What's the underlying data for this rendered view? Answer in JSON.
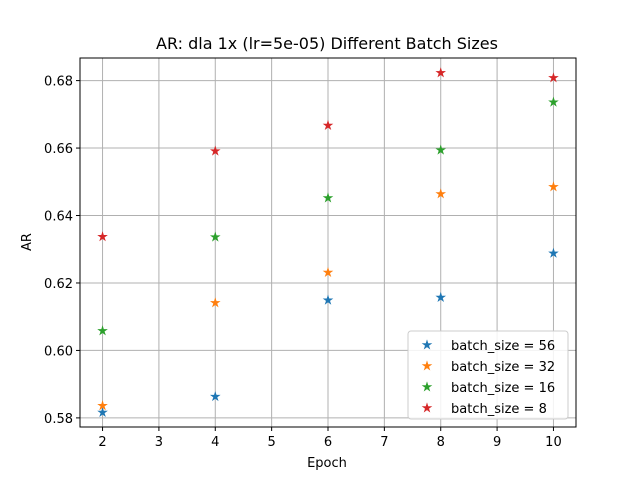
{
  "chart_data": {
    "type": "scatter",
    "title": "AR: dla 1x (lr=5e-05) Different Batch Sizes",
    "xlabel": "Epoch",
    "ylabel": "AR",
    "xlim": [
      1.6,
      10.4
    ],
    "ylim": [
      0.5773,
      0.6867
    ],
    "xticks": [
      2,
      3,
      4,
      5,
      6,
      7,
      8,
      9,
      10
    ],
    "yticks": [
      0.58,
      0.6,
      0.62,
      0.64,
      0.66,
      0.68
    ],
    "grid": true,
    "marker": "star",
    "legend_position": "lower-right",
    "x": [
      2,
      4,
      6,
      8,
      10
    ],
    "series": [
      {
        "name": "batch_size = 56",
        "color": "#1f77b4",
        "values": [
          0.5816,
          0.5863,
          0.6149,
          0.6157,
          0.6288
        ]
      },
      {
        "name": "batch_size = 32",
        "color": "#ff7f0e",
        "values": [
          0.5836,
          0.6141,
          0.6231,
          0.6464,
          0.6485
        ]
      },
      {
        "name": "batch_size = 16",
        "color": "#2ca02c",
        "values": [
          0.6058,
          0.6336,
          0.6452,
          0.6594,
          0.6736
        ]
      },
      {
        "name": "batch_size = 8",
        "color": "#d62728",
        "values": [
          0.6337,
          0.6591,
          0.6667,
          0.6823,
          0.6808
        ]
      }
    ]
  }
}
